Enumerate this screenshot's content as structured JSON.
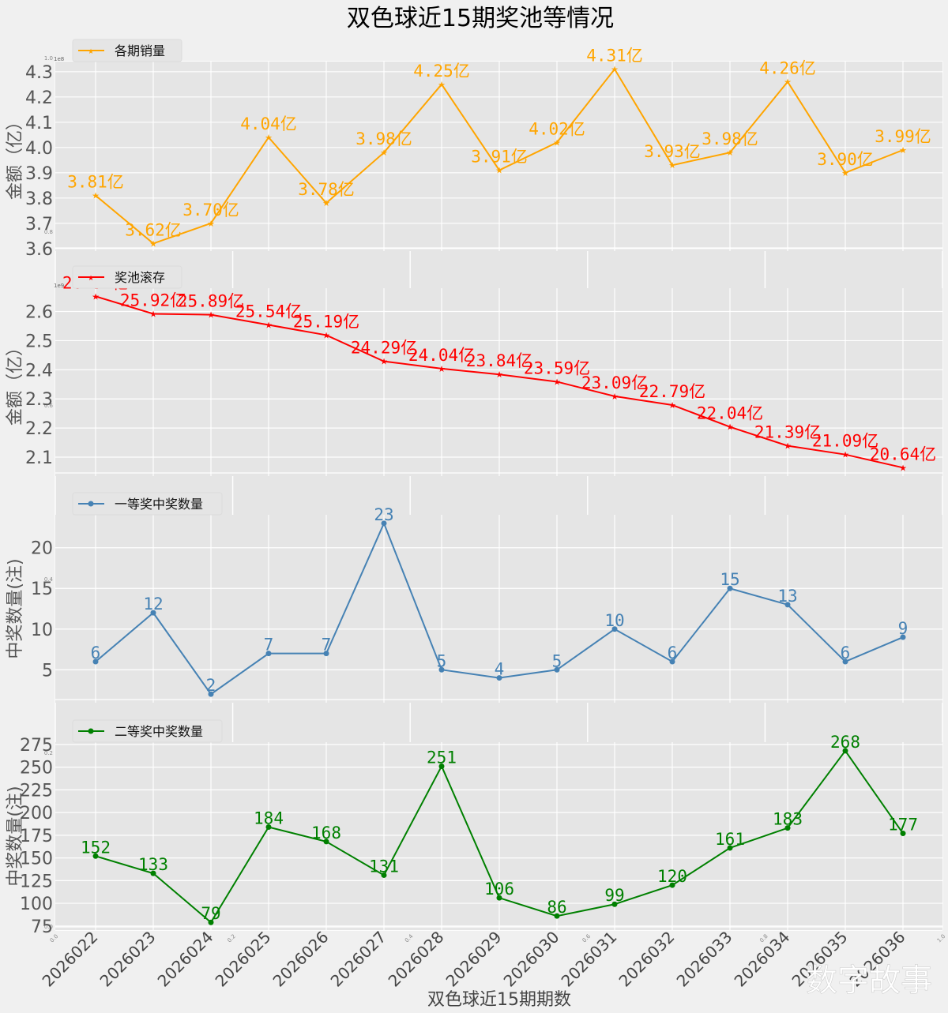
{
  "title": "双色球近15期奖池等情况",
  "xlabel": "双色球近15期期数",
  "watermark": "数字故事",
  "background_axis": {
    "xticks": [
      "0.0",
      "0.2",
      "0.4",
      "0.6",
      "0.8",
      "1.0"
    ],
    "yticks": [
      "0.0",
      "0.2",
      "0.4",
      "0.6",
      "0.8",
      "1.0"
    ]
  },
  "chart_data": [
    {
      "type": "line",
      "name": "sales",
      "legend": "各期销量",
      "legend_position": "top-left",
      "color": "#FFA500",
      "marker": "star",
      "ylabel": "金额（亿）",
      "offset_text": "1e8",
      "yticks": [
        "3.6",
        "3.7",
        "3.8",
        "3.9",
        "4.0",
        "4.1",
        "4.2",
        "4.3"
      ],
      "ylim": [
        3.59,
        4.34
      ],
      "categories": [
        "2026022",
        "2026023",
        "2026024",
        "2026025",
        "2026026",
        "2026027",
        "2026028",
        "2026029",
        "2026030",
        "2026031",
        "2026032",
        "2026033",
        "2026034",
        "2026035",
        "2026036"
      ],
      "values": [
        3.81,
        3.62,
        3.7,
        4.04,
        3.78,
        3.98,
        4.25,
        3.91,
        4.02,
        4.31,
        3.93,
        3.98,
        4.26,
        3.9,
        3.99
      ],
      "labels": [
        "3.81亿",
        "3.62亿",
        "3.70亿",
        "4.04亿",
        "3.78亿",
        "3.98亿",
        "4.25亿",
        "3.91亿",
        "4.02亿",
        "4.31亿",
        "3.93亿",
        "3.98亿",
        "4.26亿",
        "3.90亿",
        "3.99亿"
      ]
    },
    {
      "type": "line",
      "name": "jackpot",
      "legend": "奖池滚存",
      "legend_position": "top-left",
      "color": "#FF0000",
      "marker": "star",
      "ylabel": "金额（亿）",
      "offset_text": "1e9",
      "yticks": [
        "2.1",
        "2.2",
        "2.3",
        "2.4",
        "2.5",
        "2.6"
      ],
      "ylim": [
        2.035,
        2.68
      ],
      "categories": [
        "2026022",
        "2026023",
        "2026024",
        "2026025",
        "2026026",
        "2026027",
        "2026028",
        "2026029",
        "2026030",
        "2026031",
        "2026032",
        "2026033",
        "2026034",
        "2026035",
        "2026036"
      ],
      "values": [
        2.652,
        2.592,
        2.589,
        2.554,
        2.519,
        2.429,
        2.404,
        2.384,
        2.359,
        2.309,
        2.279,
        2.204,
        2.139,
        2.109,
        2.064
      ],
      "labels": [
        "26.52亿",
        "25.92亿",
        "25.89亿",
        "25.54亿",
        "25.19亿",
        "24.29亿",
        "24.04亿",
        "23.84亿",
        "23.59亿",
        "23.09亿",
        "22.79亿",
        "22.04亿",
        "21.39亿",
        "21.09亿",
        "20.64亿"
      ]
    },
    {
      "type": "line",
      "name": "first_prize",
      "legend": "一等奖中奖数量",
      "legend_position": "top-left",
      "color": "#4682B4",
      "marker": "circle",
      "ylabel": "中奖数量(注)",
      "yticks": [
        "5",
        "10",
        "15",
        "20"
      ],
      "ylim": [
        0.95,
        24.05
      ],
      "categories": [
        "2026022",
        "2026023",
        "2026024",
        "2026025",
        "2026026",
        "2026027",
        "2026028",
        "2026029",
        "2026030",
        "2026031",
        "2026032",
        "2026033",
        "2026034",
        "2026035",
        "2026036"
      ],
      "values": [
        6,
        12,
        2,
        7,
        7,
        23,
        5,
        4,
        5,
        10,
        6,
        15,
        13,
        6,
        9
      ],
      "labels": [
        "6",
        "12",
        "2",
        "7",
        "7",
        "23",
        "5",
        "4",
        "5",
        "10",
        "6",
        "15",
        "13",
        "6",
        "9"
      ]
    },
    {
      "type": "line",
      "name": "second_prize",
      "legend": "二等奖中奖数量",
      "legend_position": "top-left",
      "color": "#008000",
      "marker": "circle",
      "ylabel": "中奖数量(注)",
      "yticks": [
        "75",
        "100",
        "125",
        "150",
        "175",
        "200",
        "225",
        "250",
        "275"
      ],
      "ylim": [
        70.5,
        277.5
      ],
      "categories": [
        "2026022",
        "2026023",
        "2026024",
        "2026025",
        "2026026",
        "2026027",
        "2026028",
        "2026029",
        "2026030",
        "2026031",
        "2026032",
        "2026033",
        "2026034",
        "2026035",
        "2026036"
      ],
      "values": [
        152,
        133,
        79,
        184,
        168,
        131,
        251,
        106,
        86,
        99,
        120,
        161,
        183,
        268,
        177
      ],
      "labels": [
        "152",
        "133",
        "79",
        "184",
        "168",
        "131",
        "251",
        "106",
        "86",
        "99",
        "120",
        "161",
        "183",
        "268",
        "177"
      ]
    }
  ]
}
